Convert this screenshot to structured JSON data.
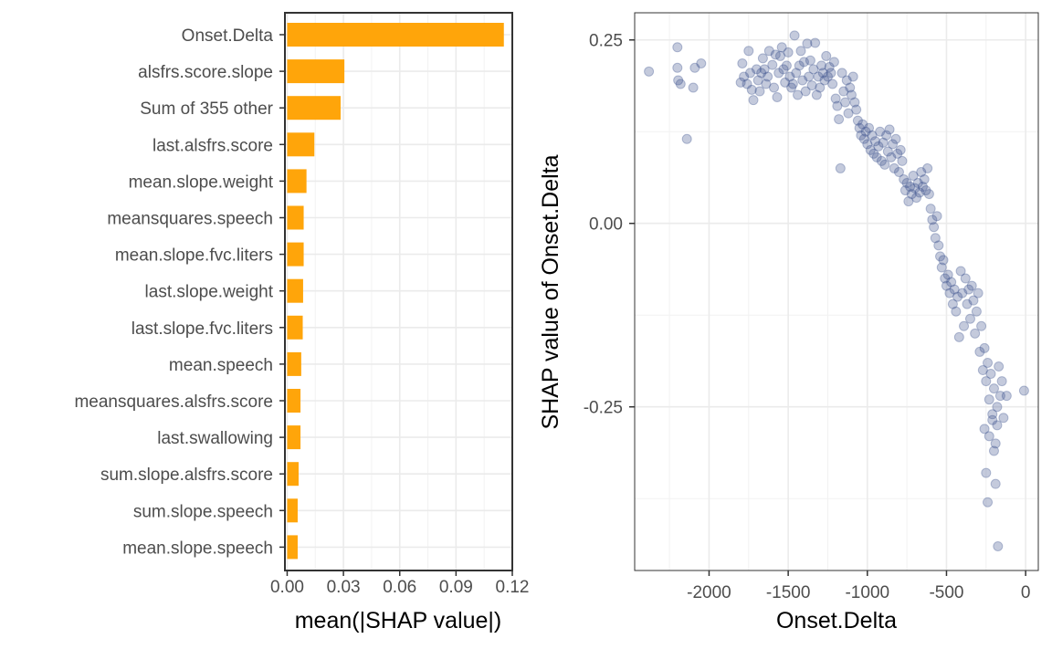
{
  "colors": {
    "bar_fill": "#ffa50a",
    "point_fill": "#3a4f8c",
    "panel_border": "#333333",
    "panel_border_right": "#333333"
  },
  "chart_data": [
    {
      "type": "bar",
      "orientation": "horizontal",
      "categories": [
        "Onset.Delta",
        "alsfrs.score.slope",
        "Sum of 355 other",
        "last.alsfrs.score",
        "mean.slope.weight",
        "meansquares.speech",
        "mean.slope.fvc.liters",
        "last.slope.weight",
        "last.slope.fvc.liters",
        "mean.speech",
        "meansquares.alsfrs.score",
        "last.swallowing",
        "sum.slope.alsfrs.score",
        "sum.slope.speech",
        "mean.slope.speech"
      ],
      "values": [
        0.1155,
        0.0305,
        0.0285,
        0.0145,
        0.0103,
        0.0088,
        0.0088,
        0.0085,
        0.0083,
        0.0075,
        0.0071,
        0.0071,
        0.0061,
        0.0056,
        0.0056
      ],
      "xlabel": "mean(|SHAP value|)",
      "ylabel": "",
      "xlim": [
        -0.0012,
        0.12
      ],
      "xticks": [
        "0.00",
        "0.03",
        "0.06",
        "0.09",
        "0.12"
      ],
      "xtick_values": [
        0,
        0.03,
        0.06,
        0.09,
        0.12
      ],
      "grid": true
    },
    {
      "type": "scatter",
      "xlabel": "Onset.Delta",
      "ylabel": "SHAP value of Onset.Delta",
      "xlim": [
        -2470,
        80
      ],
      "ylim": [
        -0.473,
        0.287
      ],
      "xticks": [
        "-2000",
        "-1500",
        "-1000",
        "-500",
        "0"
      ],
      "xtick_values": [
        -2000,
        -1500,
        -1000,
        -500,
        0
      ],
      "yticks": [
        "0.25",
        "0.00",
        "-0.25"
      ],
      "ytick_values": [
        0.25,
        0,
        -0.25
      ],
      "grid": true,
      "points": [
        [
          -2380,
          0.207
        ],
        [
          -2200,
          0.24
        ],
        [
          -2200,
          0.212
        ],
        [
          -2195,
          0.195
        ],
        [
          -2180,
          0.19
        ],
        [
          -2140,
          0.115
        ],
        [
          -2100,
          0.185
        ],
        [
          -2090,
          0.212
        ],
        [
          -2050,
          0.218
        ],
        [
          -1800,
          0.192
        ],
        [
          -1790,
          0.218
        ],
        [
          -1780,
          0.2
        ],
        [
          -1760,
          0.19
        ],
        [
          -1750,
          0.235
        ],
        [
          -1740,
          0.205
        ],
        [
          -1730,
          0.182
        ],
        [
          -1720,
          0.168
        ],
        [
          -1700,
          0.21
        ],
        [
          -1690,
          0.195
        ],
        [
          -1680,
          0.18
        ],
        [
          -1670,
          0.205
        ],
        [
          -1660,
          0.225
        ],
        [
          -1650,
          0.21
        ],
        [
          -1640,
          0.19
        ],
        [
          -1630,
          0.2
        ],
        [
          -1620,
          0.235
        ],
        [
          -1600,
          0.216
        ],
        [
          -1590,
          0.185
        ],
        [
          -1580,
          0.23
        ],
        [
          -1570,
          0.172
        ],
        [
          -1560,
          0.205
        ],
        [
          -1550,
          0.228
        ],
        [
          -1540,
          0.24
        ],
        [
          -1530,
          0.21
        ],
        [
          -1520,
          0.192
        ],
        [
          -1510,
          0.215
        ],
        [
          -1500,
          0.233
        ],
        [
          -1490,
          0.2
        ],
        [
          -1480,
          0.185
        ],
        [
          -1470,
          0.19
        ],
        [
          -1460,
          0.256
        ],
        [
          -1450,
          0.205
        ],
        [
          -1440,
          0.175
        ],
        [
          -1430,
          0.215
        ],
        [
          -1420,
          0.235
        ],
        [
          -1410,
          0.195
        ],
        [
          -1400,
          0.22
        ],
        [
          -1390,
          0.18
        ],
        [
          -1380,
          0.245
        ],
        [
          -1370,
          0.2
        ],
        [
          -1360,
          0.222
        ],
        [
          -1350,
          0.188
        ],
        [
          -1340,
          0.21
        ],
        [
          -1330,
          0.246
        ],
        [
          -1320,
          0.175
        ],
        [
          -1310,
          0.2
        ],
        [
          -1300,
          0.185
        ],
        [
          -1290,
          0.215
        ],
        [
          -1280,
          0.205
        ],
        [
          -1270,
          0.195
        ],
        [
          -1260,
          0.228
        ],
        [
          -1250,
          0.2
        ],
        [
          -1240,
          0.213
        ],
        [
          -1230,
          0.205
        ],
        [
          -1220,
          0.19
        ],
        [
          -1210,
          0.22
        ],
        [
          -1200,
          0.17
        ],
        [
          -1190,
          0.16
        ],
        [
          -1180,
          0.142
        ],
        [
          -1170,
          0.075
        ],
        [
          -1160,
          0.205
        ],
        [
          -1150,
          0.18
        ],
        [
          -1140,
          0.165
        ],
        [
          -1130,
          0.195
        ],
        [
          -1120,
          0.15
        ],
        [
          -1110,
          0.185
        ],
        [
          -1100,
          0.175
        ],
        [
          -1090,
          0.2
        ],
        [
          -1080,
          0.165
        ],
        [
          -1070,
          0.155
        ],
        [
          -1060,
          0.14
        ],
        [
          -1050,
          0.13
        ],
        [
          -1040,
          0.12
        ],
        [
          -1030,
          0.135
        ],
        [
          -1020,
          0.115
        ],
        [
          -1010,
          0.125
        ],
        [
          -1000,
          0.108
        ],
        [
          -990,
          0.13
        ],
        [
          -980,
          0.1
        ],
        [
          -970,
          0.12
        ],
        [
          -960,
          0.095
        ],
        [
          -950,
          0.112
        ],
        [
          -940,
          0.09
        ],
        [
          -930,
          0.105
        ],
        [
          -920,
          0.125
        ],
        [
          -910,
          0.085
        ],
        [
          -900,
          0.11
        ],
        [
          -890,
          0.08
        ],
        [
          -880,
          0.12
        ],
        [
          -870,
          0.098
        ],
        [
          -860,
          0.128
        ],
        [
          -850,
          0.09
        ],
        [
          -840,
          0.108
        ],
        [
          -830,
          0.075
        ],
        [
          -820,
          0.115
        ],
        [
          -810,
          0.095
        ],
        [
          -800,
          0.07
        ],
        [
          -790,
          0.1
        ],
        [
          -780,
          0.085
        ],
        [
          -770,
          0.06
        ],
        [
          -760,
          0.045
        ],
        [
          -750,
          0.055
        ],
        [
          -740,
          0.03
        ],
        [
          -730,
          0.05
        ],
        [
          -720,
          0.04
        ],
        [
          -710,
          0.065
        ],
        [
          -700,
          0.048
        ],
        [
          -690,
          0.035
        ],
        [
          -680,
          0.055
        ],
        [
          -670,
          0.042
        ],
        [
          -660,
          0.07
        ],
        [
          -650,
          0.05
        ],
        [
          -640,
          0.06
        ],
        [
          -630,
          0.045
        ],
        [
          -620,
          0.075
        ],
        [
          -610,
          0.04
        ],
        [
          -600,
          0.02
        ],
        [
          -590,
          0.005
        ],
        [
          -580,
          -0.005
        ],
        [
          -570,
          -0.02
        ],
        [
          -560,
          0.01
        ],
        [
          -550,
          -0.03
        ],
        [
          -540,
          -0.045
        ],
        [
          -530,
          -0.06
        ],
        [
          -520,
          -0.05
        ],
        [
          -510,
          -0.075
        ],
        [
          -500,
          -0.085
        ],
        [
          -490,
          -0.07
        ],
        [
          -480,
          -0.095
        ],
        [
          -470,
          -0.08
        ],
        [
          -460,
          -0.11
        ],
        [
          -450,
          -0.09
        ],
        [
          -440,
          -0.12
        ],
        [
          -430,
          -0.1
        ],
        [
          -420,
          -0.155
        ],
        [
          -410,
          -0.065
        ],
        [
          -400,
          -0.095
        ],
        [
          -390,
          -0.14
        ],
        [
          -380,
          -0.075
        ],
        [
          -370,
          -0.11
        ],
        [
          -360,
          -0.09
        ],
        [
          -350,
          -0.13
        ],
        [
          -340,
          -0.085
        ],
        [
          -330,
          -0.105
        ],
        [
          -320,
          -0.15
        ],
        [
          -310,
          -0.12
        ],
        [
          -300,
          -0.095
        ],
        [
          -290,
          -0.175
        ],
        [
          -280,
          -0.14
        ],
        [
          -270,
          -0.2
        ],
        [
          -260,
          -0.17
        ],
        [
          -250,
          -0.215
        ],
        [
          -240,
          -0.19
        ],
        [
          -230,
          -0.24
        ],
        [
          -220,
          -0.205
        ],
        [
          -210,
          -0.26
        ],
        [
          -200,
          -0.225
        ],
        [
          -190,
          -0.3
        ],
        [
          -180,
          -0.25
        ],
        [
          -170,
          -0.195
        ],
        [
          -160,
          -0.235
        ],
        [
          -150,
          -0.215
        ],
        [
          -140,
          -0.265
        ],
        [
          -260,
          -0.28
        ],
        [
          -250,
          -0.34
        ],
        [
          -240,
          -0.38
        ],
        [
          -200,
          -0.31
        ],
        [
          -190,
          -0.355
        ],
        [
          -175,
          -0.44
        ],
        [
          -120,
          -0.235
        ],
        [
          -10,
          -0.228
        ],
        [
          -230,
          -0.29
        ],
        [
          -210,
          -0.268
        ],
        [
          -180,
          -0.275
        ]
      ]
    }
  ]
}
